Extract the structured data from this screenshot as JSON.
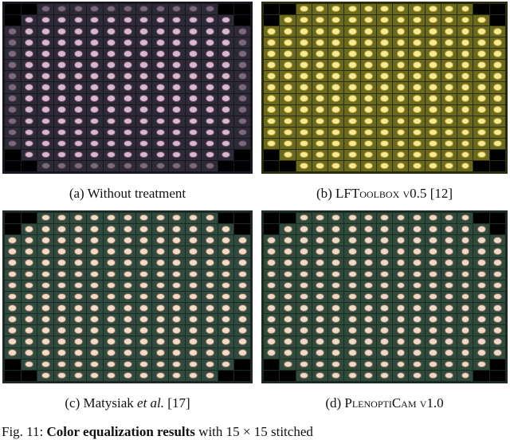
{
  "panels": [
    {
      "id": "a",
      "caption": {
        "label": "(a)",
        "text": "Without treatment"
      }
    },
    {
      "id": "b",
      "caption": {
        "label": "(b)",
        "text": "LFToolbox v0.5",
        "ref": "[12]"
      }
    },
    {
      "id": "c",
      "caption": {
        "label": "(c)",
        "text": "Matysiak",
        "text_italic": "et al.",
        "ref": "[17]"
      }
    },
    {
      "id": "d",
      "caption": {
        "label": "(d)",
        "text": "PlenoptiCam v1.0"
      }
    }
  ],
  "figure_caption": {
    "prefix": "Fig. 11:",
    "bold": "Color equalization results",
    "rest": "with 15 × 15 stitched"
  },
  "colors": {
    "panel_a_flower": "#d9b8cf",
    "panel_b_flower": "#f3ea9a",
    "panel_c_flower": "#f2dcc8",
    "panel_d_flower": "#eedac9"
  }
}
